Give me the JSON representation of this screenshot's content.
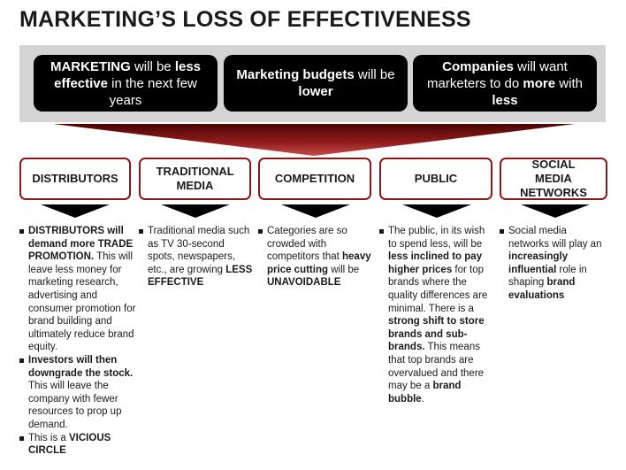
{
  "title": "MARKETING’S LOSS OF EFFECTIVENESS",
  "top_boxes": [
    {
      "parts": [
        {
          "t": "MARKETING",
          "b": true
        },
        {
          "t": " will be ",
          "b": false
        },
        {
          "t": "less effective",
          "b": true
        },
        {
          "t": " in the next few years",
          "b": false
        }
      ]
    },
    {
      "parts": [
        {
          "t": "Marketing budgets",
          "b": true
        },
        {
          "t": " will be ",
          "b": false
        },
        {
          "t": "lower",
          "b": true
        }
      ]
    },
    {
      "parts": [
        {
          "t": "Companies",
          "b": true
        },
        {
          "t": " will want marketers to do ",
          "b": false
        },
        {
          "t": "more",
          "b": true
        },
        {
          "t": " with ",
          "b": false
        },
        {
          "t": "less",
          "b": true
        }
      ]
    }
  ],
  "categories": [
    "DISTRIBUTORS",
    "TRADITIONAL MEDIA",
    "COMPETITION",
    "PUBLIC",
    "SOCIAL MEDIA NETWORKS"
  ],
  "columns": [
    [
      [
        {
          "t": "DISTRIBUTORS will demand more TRADE PROMOTION.",
          "b": true
        },
        {
          "t": " This will leave less money for marketing research, advertising and consumer promotion for brand building and ultimately reduce brand equity.",
          "b": false
        }
      ],
      [
        {
          "t": "Investors will then downgrade the stock.",
          "b": true
        },
        {
          "t": " This will leave the company with fewer resources to prop up demand.",
          "b": false
        }
      ],
      [
        {
          "t": "This is a ",
          "b": false
        },
        {
          "t": "VICIOUS CIRCLE",
          "b": true
        }
      ]
    ],
    [
      [
        {
          "t": "Traditional media such as TV 30-second spots, newspapers, etc., are growing ",
          "b": false
        },
        {
          "t": "LESS EFFECTIVE",
          "b": true
        }
      ]
    ],
    [
      [
        {
          "t": "Categories are so crowded with competitors that ",
          "b": false
        },
        {
          "t": "heavy price cutting",
          "b": true
        },
        {
          "t": " will be ",
          "b": false
        },
        {
          "t": "UNAVOIDABLE",
          "b": true
        }
      ]
    ],
    [
      [
        {
          "t": "The public, in its wish to spend less, will be ",
          "b": false
        },
        {
          "t": "less inclined to pay higher prices",
          "b": true
        },
        {
          "t": " for top brands where the quality differences are minimal.  There is a ",
          "b": false
        },
        {
          "t": "strong shift to store brands and sub-brands.",
          "b": true
        },
        {
          "t": "  This means that top brands are overvalued and there may be a ",
          "b": false
        },
        {
          "t": "brand bubble",
          "b": true
        },
        {
          "t": ".",
          "b": false
        }
      ]
    ],
    [
      [
        {
          "t": "Social media networks will play an ",
          "b": false
        },
        {
          "t": "increasingly influential",
          "b": true
        },
        {
          "t": " role in shaping ",
          "b": false
        },
        {
          "t": "brand evaluations",
          "b": true
        }
      ]
    ]
  ],
  "colors": {
    "accent": "#8a1818",
    "band": "#d4d4d4",
    "box": "#000000"
  }
}
